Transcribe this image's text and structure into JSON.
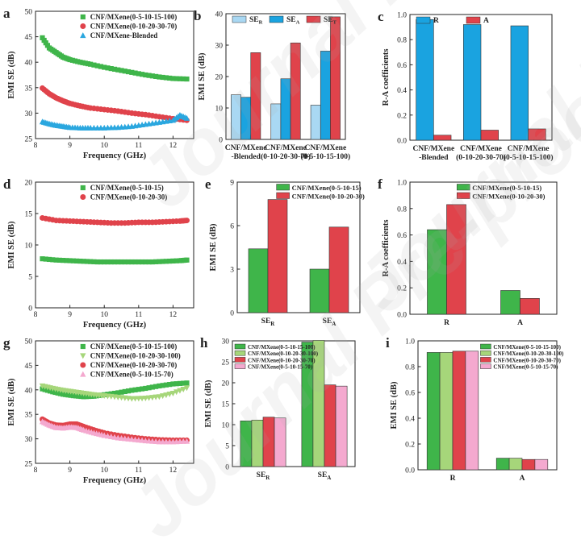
{
  "figure": {
    "watermark": "Journal Pre-proof"
  },
  "chart_data": [
    {
      "id": "a",
      "panel_label": "a",
      "type": "line",
      "xlabel": "Frequency (GHz)",
      "ylabel": "EMI SE (dB)",
      "xlim": [
        8,
        12.6
      ],
      "ylim": [
        25,
        50
      ],
      "xticks": [
        8,
        9,
        10,
        11,
        12
      ],
      "yticks": [
        25,
        30,
        35,
        40,
        45,
        50
      ],
      "legend_position": "top-right",
      "series": [
        {
          "name": "CNF/MXene(0-5-10-15-100)",
          "color": "#3fb54a",
          "marker": "square",
          "x": [
            8.2,
            8.4,
            8.6,
            8.8,
            9.0,
            9.3,
            9.6,
            10.0,
            10.4,
            10.8,
            11.2,
            11.6,
            12.0,
            12.4
          ],
          "y": [
            44.8,
            42.8,
            41.9,
            41.0,
            40.5,
            40.0,
            39.6,
            39.0,
            38.5,
            38.0,
            37.5,
            37.1,
            36.8,
            36.7
          ]
        },
        {
          "name": "CNF/MXene(0-10-20-30-70)",
          "color": "#e0434b",
          "marker": "circle",
          "x": [
            8.2,
            8.4,
            8.6,
            8.8,
            9.0,
            9.3,
            9.6,
            10.0,
            10.4,
            10.8,
            11.2,
            11.6,
            12.0,
            12.4
          ],
          "y": [
            34.9,
            33.8,
            33.0,
            32.4,
            31.9,
            31.4,
            31.0,
            30.7,
            30.4,
            30.0,
            29.7,
            29.3,
            28.9,
            28.6
          ]
        },
        {
          "name": "CNF/MXene-Blended",
          "color": "#2aa7df",
          "marker": "triangle",
          "x": [
            8.2,
            8.4,
            8.6,
            8.8,
            9.0,
            9.3,
            9.6,
            10.0,
            10.4,
            10.8,
            11.2,
            11.6,
            12.0,
            12.2,
            12.4
          ],
          "y": [
            28.3,
            27.9,
            27.6,
            27.4,
            27.2,
            27.1,
            27.1,
            27.1,
            27.2,
            27.4,
            27.8,
            28.2,
            28.6,
            29.6,
            29.0
          ]
        }
      ]
    },
    {
      "id": "b",
      "panel_label": "b",
      "type": "bar",
      "xlabel": "",
      "ylabel": "EMI SE (dB)",
      "ylim": [
        0,
        40
      ],
      "yticks": [
        0,
        10,
        20,
        30,
        40
      ],
      "categories": [
        "CNF/MXene\n-Blended",
        "CNF/MXene\n(0-10-20-30-70)",
        "CNF/MXene\n(0-5-10-15-100)"
      ],
      "legend_position": "top",
      "legend_horizontal": true,
      "x_sub": [
        null,
        null,
        null
      ],
      "series": [
        {
          "name": "SE",
          "sub": "R",
          "color": "#a9d8f3",
          "values": [
            14.2,
            11.3,
            10.9
          ]
        },
        {
          "name": "SE",
          "sub": "A",
          "color": "#1aa3e0",
          "values": [
            13.4,
            19.3,
            28.1
          ]
        },
        {
          "name": "SE",
          "sub": "T",
          "color": "#e0434b",
          "values": [
            27.6,
            30.7,
            39.0
          ]
        }
      ]
    },
    {
      "id": "c",
      "panel_label": "c",
      "type": "bar",
      "xlabel": "",
      "ylabel": "R-A coefficients",
      "ylim": [
        0,
        1.0
      ],
      "yticks": [
        0.0,
        0.2,
        0.4,
        0.6,
        0.8,
        1.0
      ],
      "categories": [
        "CNF/MXene\n-Blended",
        "CNF/MXene\n(0-10-20-30-70)",
        "CNF/MXene\n(0-5-10-15-100)"
      ],
      "legend_position": "top",
      "legend_horizontal": true,
      "x_sub": [
        null,
        null,
        null
      ],
      "series": [
        {
          "name": "R",
          "color": "#1aa3e0",
          "values": [
            0.96,
            0.92,
            0.91
          ]
        },
        {
          "name": "A",
          "color": "#e0434b",
          "values": [
            0.04,
            0.08,
            0.09
          ]
        }
      ]
    },
    {
      "id": "d",
      "panel_label": "d",
      "type": "line",
      "xlabel": "Frequency (GHz)",
      "ylabel": "EMI SE (dB)",
      "xlim": [
        8,
        12.6
      ],
      "ylim": [
        0,
        20
      ],
      "xticks": [
        8,
        9,
        10,
        11,
        12
      ],
      "yticks": [
        0,
        5,
        10,
        15,
        20
      ],
      "legend_position": "top-right",
      "series": [
        {
          "name": "CNF/MXene(0-5-10-15)",
          "color": "#3fb54a",
          "marker": "square",
          "x": [
            8.2,
            8.6,
            9.0,
            9.4,
            9.8,
            10.2,
            10.6,
            11.0,
            11.4,
            11.8,
            12.2,
            12.4
          ],
          "y": [
            7.8,
            7.6,
            7.5,
            7.4,
            7.3,
            7.3,
            7.3,
            7.3,
            7.3,
            7.4,
            7.5,
            7.6
          ]
        },
        {
          "name": "CNF/MXene(0-10-20-30)",
          "color": "#e0434b",
          "marker": "circle",
          "x": [
            8.2,
            8.6,
            9.0,
            9.4,
            9.8,
            10.2,
            10.6,
            11.0,
            11.4,
            11.8,
            12.2,
            12.4
          ],
          "y": [
            14.3,
            13.9,
            13.8,
            13.7,
            13.6,
            13.5,
            13.5,
            13.6,
            13.6,
            13.7,
            13.8,
            13.9
          ]
        }
      ]
    },
    {
      "id": "e",
      "panel_label": "e",
      "type": "bar",
      "xlabel": "",
      "ylabel": "EMI SE (dB)",
      "ylim": [
        0,
        9
      ],
      "yticks": [
        0,
        3,
        6,
        9
      ],
      "categories": [
        "SE",
        "SE"
      ],
      "x_sub": [
        "R",
        "A"
      ],
      "legend_position": "top",
      "legend_horizontal": false,
      "series": [
        {
          "name": "CNF/MXene(0-5-10-15)",
          "color": "#3fb54a",
          "values": [
            4.4,
            3.0
          ]
        },
        {
          "name": "CNF/MXene(0-10-20-30)",
          "color": "#e0434b",
          "values": [
            7.8,
            5.9
          ]
        }
      ]
    },
    {
      "id": "f",
      "panel_label": "f",
      "type": "bar",
      "xlabel": "",
      "ylabel": "R-A coefficients",
      "ylim": [
        0,
        1.0
      ],
      "yticks": [
        0.0,
        0.2,
        0.4,
        0.6,
        0.8,
        1.0
      ],
      "categories": [
        "R",
        "A"
      ],
      "x_sub": [
        null,
        null
      ],
      "legend_position": "top",
      "legend_horizontal": false,
      "series": [
        {
          "name": "CNF/MXene(0-5-10-15)",
          "color": "#3fb54a",
          "values": [
            0.64,
            0.18
          ]
        },
        {
          "name": "CNF/MXene(0-10-20-30)",
          "color": "#e0434b",
          "values": [
            0.83,
            0.12
          ]
        }
      ]
    },
    {
      "id": "g",
      "panel_label": "g",
      "type": "line",
      "xlabel": "Frequency (GHz)",
      "ylabel": "EMI SE (dB)",
      "xlim": [
        8,
        12.6
      ],
      "ylim": [
        25,
        50
      ],
      "xticks": [
        8,
        9,
        10,
        11,
        12
      ],
      "yticks": [
        25,
        30,
        35,
        40,
        45,
        50
      ],
      "legend_position": "top-right",
      "series": [
        {
          "name": "CNF/MXene(0-5-10-15-100)",
          "color": "#3fb54a",
          "marker": "square",
          "x": [
            8.2,
            8.5,
            8.8,
            9.1,
            9.4,
            9.7,
            10.0,
            10.4,
            10.8,
            11.2,
            11.6,
            12.0,
            12.4
          ],
          "y": [
            40.2,
            39.6,
            39.1,
            38.8,
            38.6,
            38.7,
            39.0,
            39.4,
            39.9,
            40.3,
            40.8,
            41.2,
            41.4
          ]
        },
        {
          "name": "CNF/MXene(0-10-20-30-100)",
          "color": "#a6d67a",
          "marker": "triangle-down",
          "x": [
            8.2,
            8.5,
            8.8,
            9.1,
            9.4,
            9.7,
            10.0,
            10.4,
            10.8,
            11.2,
            11.6,
            12.0,
            12.4
          ],
          "y": [
            40.8,
            40.3,
            39.9,
            39.6,
            39.3,
            39.0,
            38.8,
            38.5,
            38.2,
            38.3,
            38.6,
            39.3,
            40.4
          ]
        },
        {
          "name": "CNF/MXene(0-10-20-30-70)",
          "color": "#e0434b",
          "marker": "circle",
          "x": [
            8.2,
            8.4,
            8.6,
            8.8,
            9.0,
            9.2,
            9.4,
            9.7,
            10.0,
            10.4,
            10.8,
            11.2,
            11.6,
            12.0,
            12.4
          ],
          "y": [
            34.0,
            33.2,
            32.8,
            32.7,
            33.0,
            33.0,
            32.5,
            31.8,
            31.2,
            30.7,
            30.3,
            30.0,
            29.8,
            29.7,
            29.7
          ]
        },
        {
          "name": "CNF/MXene(0-5-10-15-70)",
          "color": "#f4a9cf",
          "marker": "triangle",
          "x": [
            8.2,
            8.4,
            8.6,
            8.8,
            9.0,
            9.2,
            9.4,
            9.7,
            10.0,
            10.4,
            10.8,
            11.2,
            11.6,
            12.0,
            12.4
          ],
          "y": [
            33.5,
            32.8,
            32.3,
            32.2,
            32.4,
            32.3,
            31.8,
            31.2,
            30.7,
            30.2,
            29.9,
            29.6,
            29.4,
            29.4,
            29.5
          ]
        }
      ]
    },
    {
      "id": "h",
      "panel_label": "h",
      "type": "bar",
      "xlabel": "",
      "ylabel": "EMI SE (dB)",
      "ylim": [
        0,
        30
      ],
      "yticks": [
        0,
        5,
        10,
        15,
        20,
        25,
        30
      ],
      "categories": [
        "SE",
        "SE"
      ],
      "x_sub": [
        "R",
        "A"
      ],
      "legend_position": "top-left",
      "legend_horizontal": false,
      "series": [
        {
          "name": "CNF/MXene(0-5-10-15-100)",
          "color": "#3fb54a",
          "values": [
            10.9,
            29.7
          ]
        },
        {
          "name": "CNF/MXene(0-10-20-30-100)",
          "color": "#a6d67a",
          "values": [
            11.1,
            30.1
          ]
        },
        {
          "name": "CNF/MXene(0-10-20-30-70)",
          "color": "#e0434b",
          "values": [
            11.8,
            19.5
          ]
        },
        {
          "name": "CNF/MXene(0-5-10-15-70)",
          "color": "#f4a9cf",
          "values": [
            11.6,
            19.2
          ]
        }
      ]
    },
    {
      "id": "i",
      "panel_label": "i",
      "type": "bar",
      "xlabel": "",
      "ylabel": "EMI SE (dB)",
      "ylim": [
        0,
        1.0
      ],
      "yticks": [
        0.0,
        0.2,
        0.4,
        0.6,
        0.8,
        1.0
      ],
      "categories": [
        "R",
        "A"
      ],
      "x_sub": [
        null,
        null
      ],
      "legend_position": "top-right",
      "legend_horizontal": false,
      "series": [
        {
          "name": "CNF/MXene(0-5-10-15-100)",
          "color": "#3fb54a",
          "values": [
            0.91,
            0.09
          ]
        },
        {
          "name": "CNF/MXene(0-10-20-30-100)",
          "color": "#a6d67a",
          "values": [
            0.91,
            0.09
          ]
        },
        {
          "name": "CNF/MXene(0-10-20-30-70)",
          "color": "#e0434b",
          "values": [
            0.92,
            0.08
          ]
        },
        {
          "name": "CNF/MXene(0-5-10-15-70)",
          "color": "#f4a9cf",
          "values": [
            0.92,
            0.08
          ]
        }
      ]
    }
  ]
}
